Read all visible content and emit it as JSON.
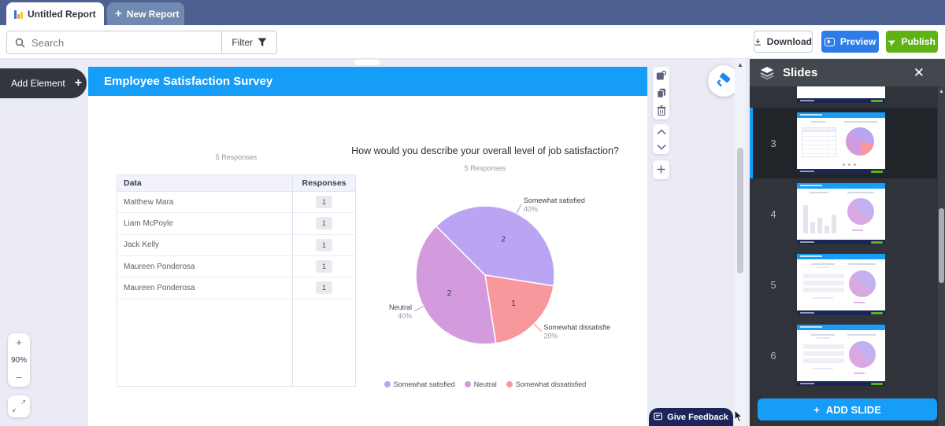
{
  "tab_bar": {
    "active_tab": "Untitled Report",
    "new_tab_label": "New Report",
    "new_tab_plus": "+"
  },
  "toolbar": {
    "search_placeholder": "Search",
    "filter_label": "Filter",
    "download_label": "Download",
    "preview_label": "Preview",
    "publish_label": "Publish"
  },
  "canvas": {
    "add_element_label": "Add Element",
    "add_element_plus": "+",
    "zoom_level": "90%",
    "zoom_in": "+",
    "zoom_out": "−",
    "feedback_label": "Give Feedback",
    "slide": {
      "title": "Employee Satisfaction Survey",
      "table": {
        "caption": "5 Responses",
        "columns": [
          "Data",
          "Responses"
        ],
        "rows": [
          [
            "Matthew Mara",
            "1"
          ],
          [
            "Liam McPoyle",
            "1"
          ],
          [
            "Jack Kelly",
            "1"
          ],
          [
            "Maureen Ponderosa",
            "1"
          ],
          [
            "Maureen Ponderosa",
            "1"
          ]
        ]
      }
    }
  },
  "chart_data": {
    "type": "pie",
    "title": "How would you describe your overall level of job satisfaction?",
    "subtitle": "5 Responses",
    "total_responses": 5,
    "start_angle_deg": -45,
    "slices": [
      {
        "label": "Somewhat satisfied",
        "callout": "Somewhat satisfied",
        "value": 2,
        "percent": "40%",
        "color": "#b9a5f3"
      },
      {
        "label": "Somewhat dissatisfied",
        "callout": "Somewhat dissatisfie",
        "value": 1,
        "percent": "20%",
        "color": "#f8989d"
      },
      {
        "label": "Neutral",
        "callout": "Neutral",
        "value": 2,
        "percent": "40%",
        "color": "#d49ade"
      }
    ],
    "legend": [
      "Somewhat satisfied",
      "Neutral",
      "Somewhat dissatisfied"
    ],
    "legend_position": "bottom"
  },
  "slides_panel": {
    "title": "Slides",
    "add_slide_label": "ADD SLIDE",
    "add_slide_plus": "+",
    "selected_slide": "3",
    "slides": [
      {
        "number": "3",
        "kind": "table-pie",
        "selected": true
      },
      {
        "number": "4",
        "kind": "bars-pie",
        "selected": false
      },
      {
        "number": "5",
        "kind": "rows-pie",
        "selected": false
      },
      {
        "number": "6",
        "kind": "rows-pie",
        "selected": false
      }
    ]
  },
  "colors": {
    "accent_blue": "#169df8",
    "preview_blue": "#2e7ce8",
    "publish_green": "#5fb213",
    "feedback_navy": "#1b2559",
    "tabbar_blue": "#4c6190"
  }
}
